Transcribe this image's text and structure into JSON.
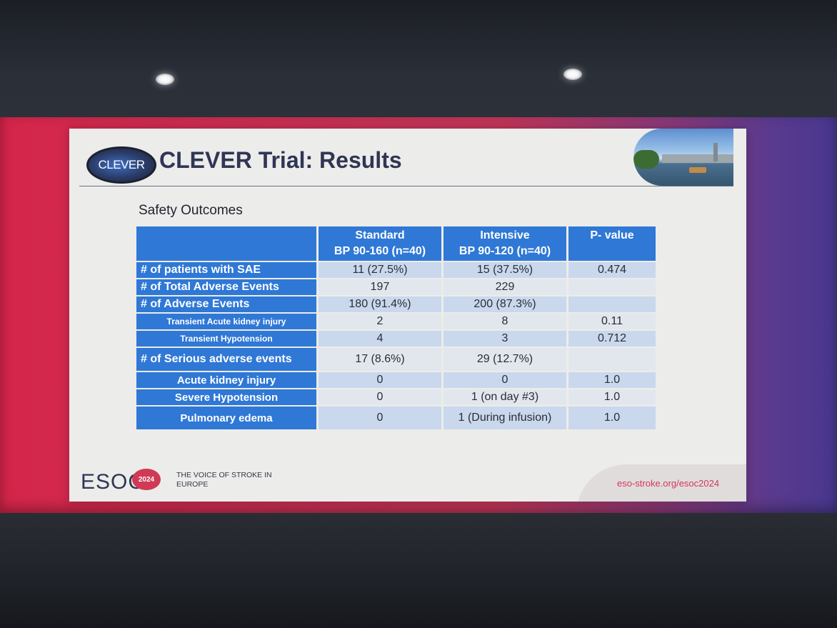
{
  "slide": {
    "logo_text": "CLEVER",
    "title": "CLEVER Trial: Results",
    "subtitle": "Safety Outcomes"
  },
  "table": {
    "headers": [
      {
        "line1": "",
        "line2": ""
      },
      {
        "line1": "Standard",
        "line2": "BP 90-160 (n=40)"
      },
      {
        "line1": "Intensive",
        "line2": "BP 90-120 (n=40)"
      },
      {
        "line1": "P- value",
        "line2": ""
      }
    ],
    "rows": [
      {
        "label": "# of patients with SAE",
        "standard": "11 (27.5%)",
        "intensive": "15 (37.5%)",
        "p": "0.474"
      },
      {
        "label": "# of Total Adverse Events",
        "standard": "197",
        "intensive": "229",
        "p": ""
      },
      {
        "label": "# of Adverse Events",
        "standard": "180 (91.4%)",
        "intensive": "200 (87.3%)",
        "p": ""
      },
      {
        "label": "Transient Acute kidney injury",
        "standard": "2",
        "intensive": "8",
        "p": "0.11"
      },
      {
        "label": "Transient Hypotension",
        "standard": "4",
        "intensive": "3",
        "p": "0.712"
      },
      {
        "label": "# of Serious adverse events",
        "standard": "17 (8.6%)",
        "intensive": "29 (12.7%)",
        "p": ""
      },
      {
        "label": "Acute kidney injury",
        "standard": "0",
        "intensive": "0",
        "p": "1.0"
      },
      {
        "label": "Severe Hypotension",
        "standard": "0",
        "intensive": "1 (on day #3)",
        "p": "1.0"
      },
      {
        "label": "Pulmonary edema",
        "standard": "0",
        "intensive": "1 (During infusion)",
        "p": "1.0"
      }
    ]
  },
  "footer": {
    "brand": "ESOC",
    "badge": "2024",
    "tagline": "THE VOICE OF STROKE IN EUROPE",
    "url": "eso-stroke.org/esoc2024"
  },
  "colors": {
    "header_blue": "#2f78d6",
    "brand_red": "#d13a56",
    "title_navy": "#2f3654"
  }
}
